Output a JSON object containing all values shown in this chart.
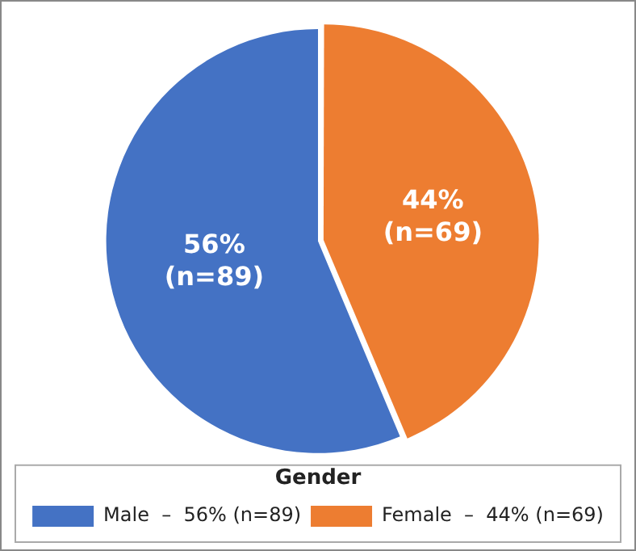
{
  "chart_data": {
    "type": "pie",
    "categories": [
      "Male  –  56% (n=89)",
      "Female  –  44% (n=69)"
    ],
    "values": [
      89,
      69
    ],
    "colors": [
      "#4472c4",
      "#ed7d31"
    ],
    "value_labels": [
      "56%\n(n=89)",
      "44%\n(n=69)"
    ],
    "legend_title": "Gender",
    "legend": "bottom"
  }
}
